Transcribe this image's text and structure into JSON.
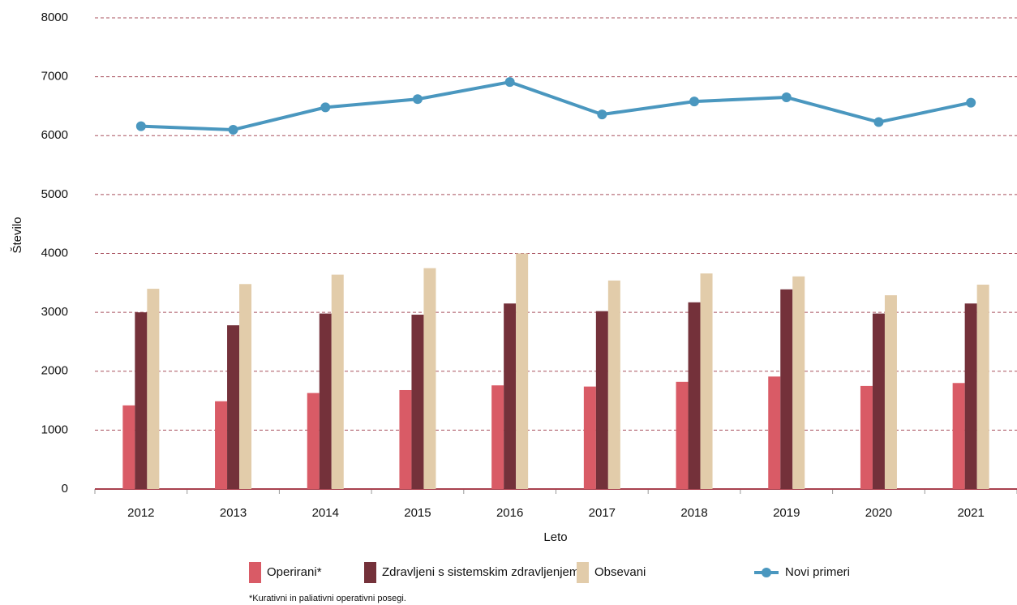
{
  "chart_data": {
    "type": "bar",
    "y_label": "Število",
    "x_label": "Leto",
    "note": "*Kurativni in paliativni operativni posegi.",
    "categories": [
      "2012",
      "2013",
      "2014",
      "2015",
      "2016",
      "2017",
      "2018",
      "2019",
      "2020",
      "2021"
    ],
    "series": [
      {
        "name": "Operirani*",
        "type": "bar",
        "color": "#d95b66",
        "values": [
          1420,
          1490,
          1630,
          1680,
          1760,
          1740,
          1820,
          1910,
          1750,
          1800
        ]
      },
      {
        "name": "Zdravljeni s sistemskim zdravljenjem",
        "type": "bar",
        "color": "#74313a",
        "values": [
          3000,
          2780,
          2980,
          2960,
          3150,
          3020,
          3170,
          3390,
          2980,
          3150
        ]
      },
      {
        "name": "Obsevani",
        "type": "bar",
        "color": "#e2ccaa",
        "values": [
          3400,
          3480,
          3640,
          3750,
          4000,
          3540,
          3660,
          3610,
          3290,
          3470
        ]
      },
      {
        "name": "Novi primeri",
        "type": "line",
        "color": "#4a97bf",
        "values": [
          6160,
          6100,
          6480,
          6620,
          6910,
          6360,
          6580,
          6650,
          6230,
          6560
        ]
      }
    ],
    "ylim": [
      0,
      8000
    ],
    "yticks": [
      0,
      1000,
      2000,
      3000,
      4000,
      5000,
      6000,
      7000,
      8000
    ],
    "grid": true
  }
}
